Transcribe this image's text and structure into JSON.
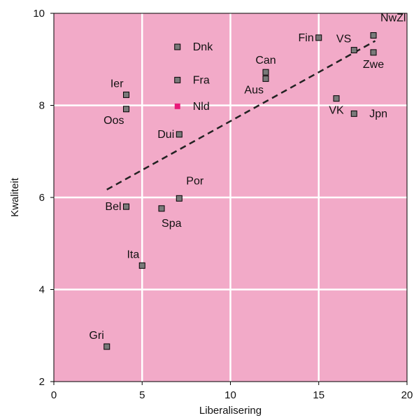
{
  "chart_data": {
    "type": "scatter",
    "title": "",
    "xlabel": "Liberalisering",
    "ylabel": "Kwaliteit",
    "xlim": [
      0,
      20
    ],
    "ylim": [
      2,
      10
    ],
    "xticks": [
      0,
      5,
      10,
      15,
      20
    ],
    "yticks": [
      2,
      4,
      6,
      8,
      10
    ],
    "grid": true,
    "colors": {
      "background": "#f2aac8",
      "grid": "#ffffff",
      "marker": "#7a7a7a",
      "highlight": "#e8197a",
      "trend": "#222222"
    },
    "points": [
      {
        "label": "Dnk",
        "x": 7,
        "y": 9.27,
        "label_pos": "right"
      },
      {
        "label": "Fra",
        "x": 7,
        "y": 8.55,
        "label_pos": "right"
      },
      {
        "label": "Nld",
        "x": 7,
        "y": 7.98,
        "label_pos": "right",
        "highlight": true
      },
      {
        "label": "Dui",
        "x": 7.1,
        "y": 7.37,
        "label_pos": "left"
      },
      {
        "label": "Por",
        "x": 7.1,
        "y": 5.98,
        "label_pos": "above-right"
      },
      {
        "label": "Spa",
        "x": 6.1,
        "y": 5.76,
        "label_pos": "below-right"
      },
      {
        "label": "Bel",
        "x": 4.1,
        "y": 5.8,
        "label_pos": "left"
      },
      {
        "label": "Ier",
        "x": 4.1,
        "y": 8.23,
        "label_pos": "above-left"
      },
      {
        "label": "Oos",
        "x": 4.1,
        "y": 7.92,
        "label_pos": "below-left"
      },
      {
        "label": "Ita",
        "x": 5,
        "y": 4.52,
        "label_pos": "above-left"
      },
      {
        "label": "Gri",
        "x": 3,
        "y": 2.76,
        "label_pos": "above-left"
      },
      {
        "label": "Can",
        "x": 12,
        "y": 8.72,
        "label_pos": "above"
      },
      {
        "label": "Aus",
        "x": 12,
        "y": 8.58,
        "label_pos": "below-left"
      },
      {
        "label": "Fin",
        "x": 15,
        "y": 9.47,
        "label_pos": "left"
      },
      {
        "label": "VK",
        "x": 16,
        "y": 8.15,
        "label_pos": "below"
      },
      {
        "label": "Jpn",
        "x": 17,
        "y": 7.82,
        "label_pos": "right"
      },
      {
        "label": "VS",
        "x": 17,
        "y": 9.2,
        "label_pos": "above-left"
      },
      {
        "label": "NwZl",
        "x": 18.1,
        "y": 9.52,
        "label_pos": "above-right"
      },
      {
        "label": "Zwe",
        "x": 18.1,
        "y": 9.15,
        "label_pos": "below"
      }
    ],
    "trendline": {
      "x": [
        3,
        18.2
      ],
      "y": [
        6.17,
        9.4
      ],
      "style": "dashed"
    }
  }
}
